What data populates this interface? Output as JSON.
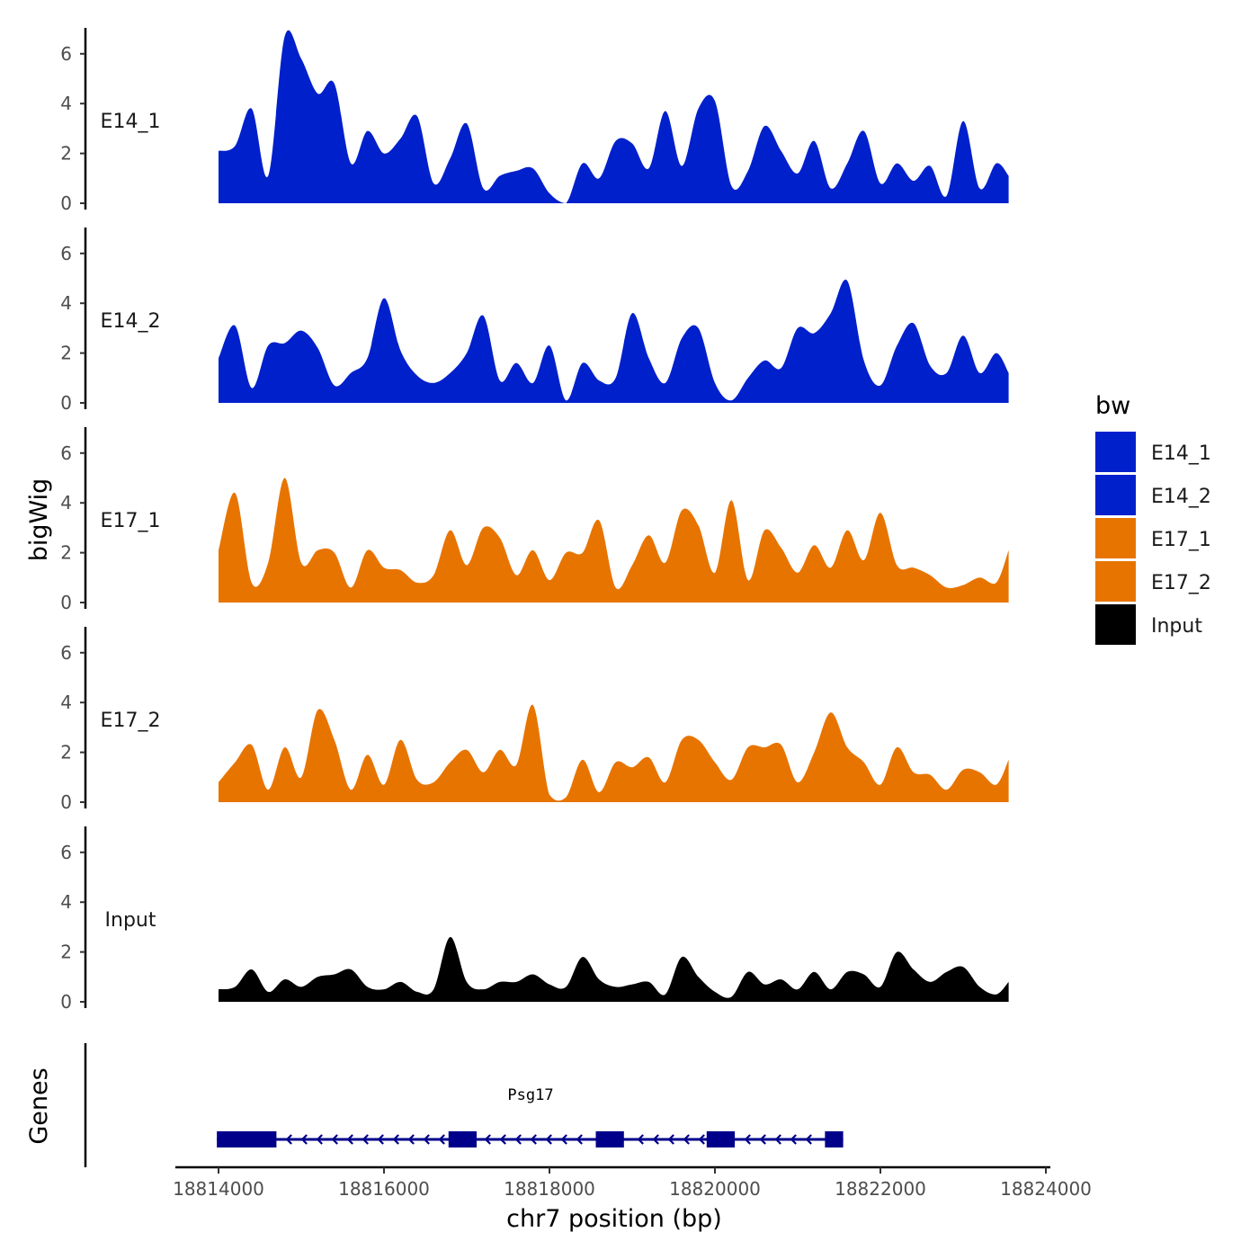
{
  "chart_data": {
    "type": "area",
    "ylabel": "bigWig",
    "xlabel": "chr7 position (bp)",
    "xlim": [
      18813800,
      18823500
    ],
    "ylim": [
      0,
      7
    ],
    "x_ticks": [
      18814000,
      18816000,
      18818000,
      18820000,
      18822000,
      18824000
    ],
    "x_tick_labels": [
      "18814000",
      "18816000",
      "18818000",
      "18820000",
      "18822000",
      "18824000"
    ],
    "y_ticks": [
      0,
      2,
      4,
      6
    ],
    "y_tick_labels": [
      "0",
      "2",
      "4",
      "6"
    ],
    "track_x": [
      18814000,
      18814200,
      18814400,
      18814600,
      18814800,
      18815000,
      18815200,
      18815400,
      18815600,
      18815800,
      18816000,
      18816200,
      18816400,
      18816600,
      18816800,
      18817000,
      18817200,
      18817400,
      18817600,
      18817800,
      18818000,
      18818200,
      18818400,
      18818600,
      18818800,
      18819000,
      18819200,
      18819400,
      18819600,
      18819800,
      18820000,
      18820200,
      18820400,
      18820600,
      18820800,
      18821000,
      18821200,
      18821400,
      18821600,
      18821800,
      18822000,
      18822200,
      18822400,
      18822600,
      18822800,
      18823000,
      18823200,
      18823400,
      18823550
    ],
    "series": [
      {
        "name": "E14_1",
        "color": "#0020CC",
        "values": [
          2.1,
          2.3,
          3.8,
          1.1,
          6.7,
          5.8,
          4.4,
          4.8,
          1.6,
          2.9,
          2.0,
          2.6,
          3.5,
          0.8,
          1.8,
          3.2,
          0.6,
          1.1,
          1.3,
          1.4,
          0.4,
          0.0,
          1.6,
          1.0,
          2.5,
          2.4,
          1.4,
          3.7,
          1.5,
          3.8,
          4.1,
          0.7,
          1.3,
          3.1,
          2.1,
          1.2,
          2.5,
          0.6,
          1.6,
          2.9,
          0.8,
          1.6,
          0.9,
          1.5,
          0.3,
          3.3,
          0.6,
          1.6,
          1.1
        ]
      },
      {
        "name": "E14_2",
        "color": "#0020CC",
        "values": [
          1.8,
          3.1,
          0.6,
          2.3,
          2.4,
          2.9,
          2.2,
          0.7,
          1.2,
          1.8,
          4.2,
          2.1,
          1.1,
          0.8,
          1.2,
          2.0,
          3.5,
          0.9,
          1.6,
          0.8,
          2.3,
          0.1,
          1.6,
          0.9,
          1.0,
          3.6,
          1.8,
          0.8,
          2.6,
          3.0,
          0.8,
          0.1,
          1.0,
          1.7,
          1.4,
          3.0,
          2.8,
          3.6,
          4.9,
          1.7,
          0.7,
          2.3,
          3.2,
          1.5,
          1.2,
          2.7,
          1.2,
          2.0,
          1.2
        ]
      },
      {
        "name": "E17_1",
        "color": "#E87400",
        "values": [
          2.1,
          4.4,
          0.8,
          1.6,
          5.0,
          1.6,
          2.1,
          2.0,
          0.6,
          2.1,
          1.4,
          1.3,
          0.8,
          1.1,
          2.9,
          1.5,
          3.0,
          2.6,
          1.1,
          2.1,
          0.9,
          2.0,
          2.0,
          3.3,
          0.6,
          1.5,
          2.7,
          1.6,
          3.7,
          3.1,
          1.2,
          4.1,
          0.9,
          2.9,
          2.2,
          1.2,
          2.3,
          1.4,
          2.9,
          1.7,
          3.6,
          1.5,
          1.4,
          1.1,
          0.6,
          0.7,
          1.0,
          0.8,
          2.1
        ]
      },
      {
        "name": "E17_2",
        "color": "#E87400",
        "values": [
          0.8,
          1.6,
          2.3,
          0.5,
          2.2,
          1.0,
          3.7,
          2.5,
          0.5,
          1.9,
          0.7,
          2.5,
          0.9,
          0.8,
          1.6,
          2.1,
          1.2,
          2.1,
          1.5,
          3.9,
          0.3,
          0.2,
          1.7,
          0.4,
          1.6,
          1.4,
          1.8,
          0.8,
          2.5,
          2.5,
          1.6,
          0.9,
          2.2,
          2.2,
          2.3,
          0.8,
          2.0,
          3.6,
          2.2,
          1.6,
          0.7,
          2.2,
          1.2,
          1.1,
          0.5,
          1.3,
          1.2,
          0.7,
          1.7
        ]
      },
      {
        "name": "Input",
        "color": "#000000",
        "values": [
          0.5,
          0.6,
          1.3,
          0.4,
          0.9,
          0.6,
          1.0,
          1.1,
          1.3,
          0.6,
          0.5,
          0.8,
          0.4,
          0.5,
          2.6,
          0.8,
          0.5,
          0.8,
          0.8,
          1.1,
          0.7,
          0.6,
          1.8,
          0.9,
          0.6,
          0.7,
          0.8,
          0.3,
          1.8,
          1.0,
          0.4,
          0.2,
          1.2,
          0.7,
          0.9,
          0.5,
          1.2,
          0.5,
          1.2,
          1.1,
          0.6,
          2.0,
          1.3,
          0.8,
          1.2,
          1.4,
          0.6,
          0.3,
          0.8
        ]
      }
    ],
    "legend": {
      "title": "bw",
      "position": "right",
      "entries": [
        {
          "label": "E14_1",
          "color": "#0020CC"
        },
        {
          "label": "E14_2",
          "color": "#0020CC"
        },
        {
          "label": "E17_1",
          "color": "#E87400"
        },
        {
          "label": "E17_2",
          "color": "#E87400"
        },
        {
          "label": "Input",
          "color": "#000000"
        }
      ]
    },
    "genes": {
      "title": "Genes",
      "color": "#00008B",
      "items": [
        {
          "name": "Psg17",
          "strand": "-",
          "start": 18813980,
          "end": 18821550,
          "exons": [
            [
              18813980,
              18814700
            ],
            [
              18816780,
              18817120
            ],
            [
              18818560,
              18818900
            ],
            [
              18819900,
              18820240
            ],
            [
              18821330,
              18821550
            ]
          ]
        }
      ]
    }
  }
}
